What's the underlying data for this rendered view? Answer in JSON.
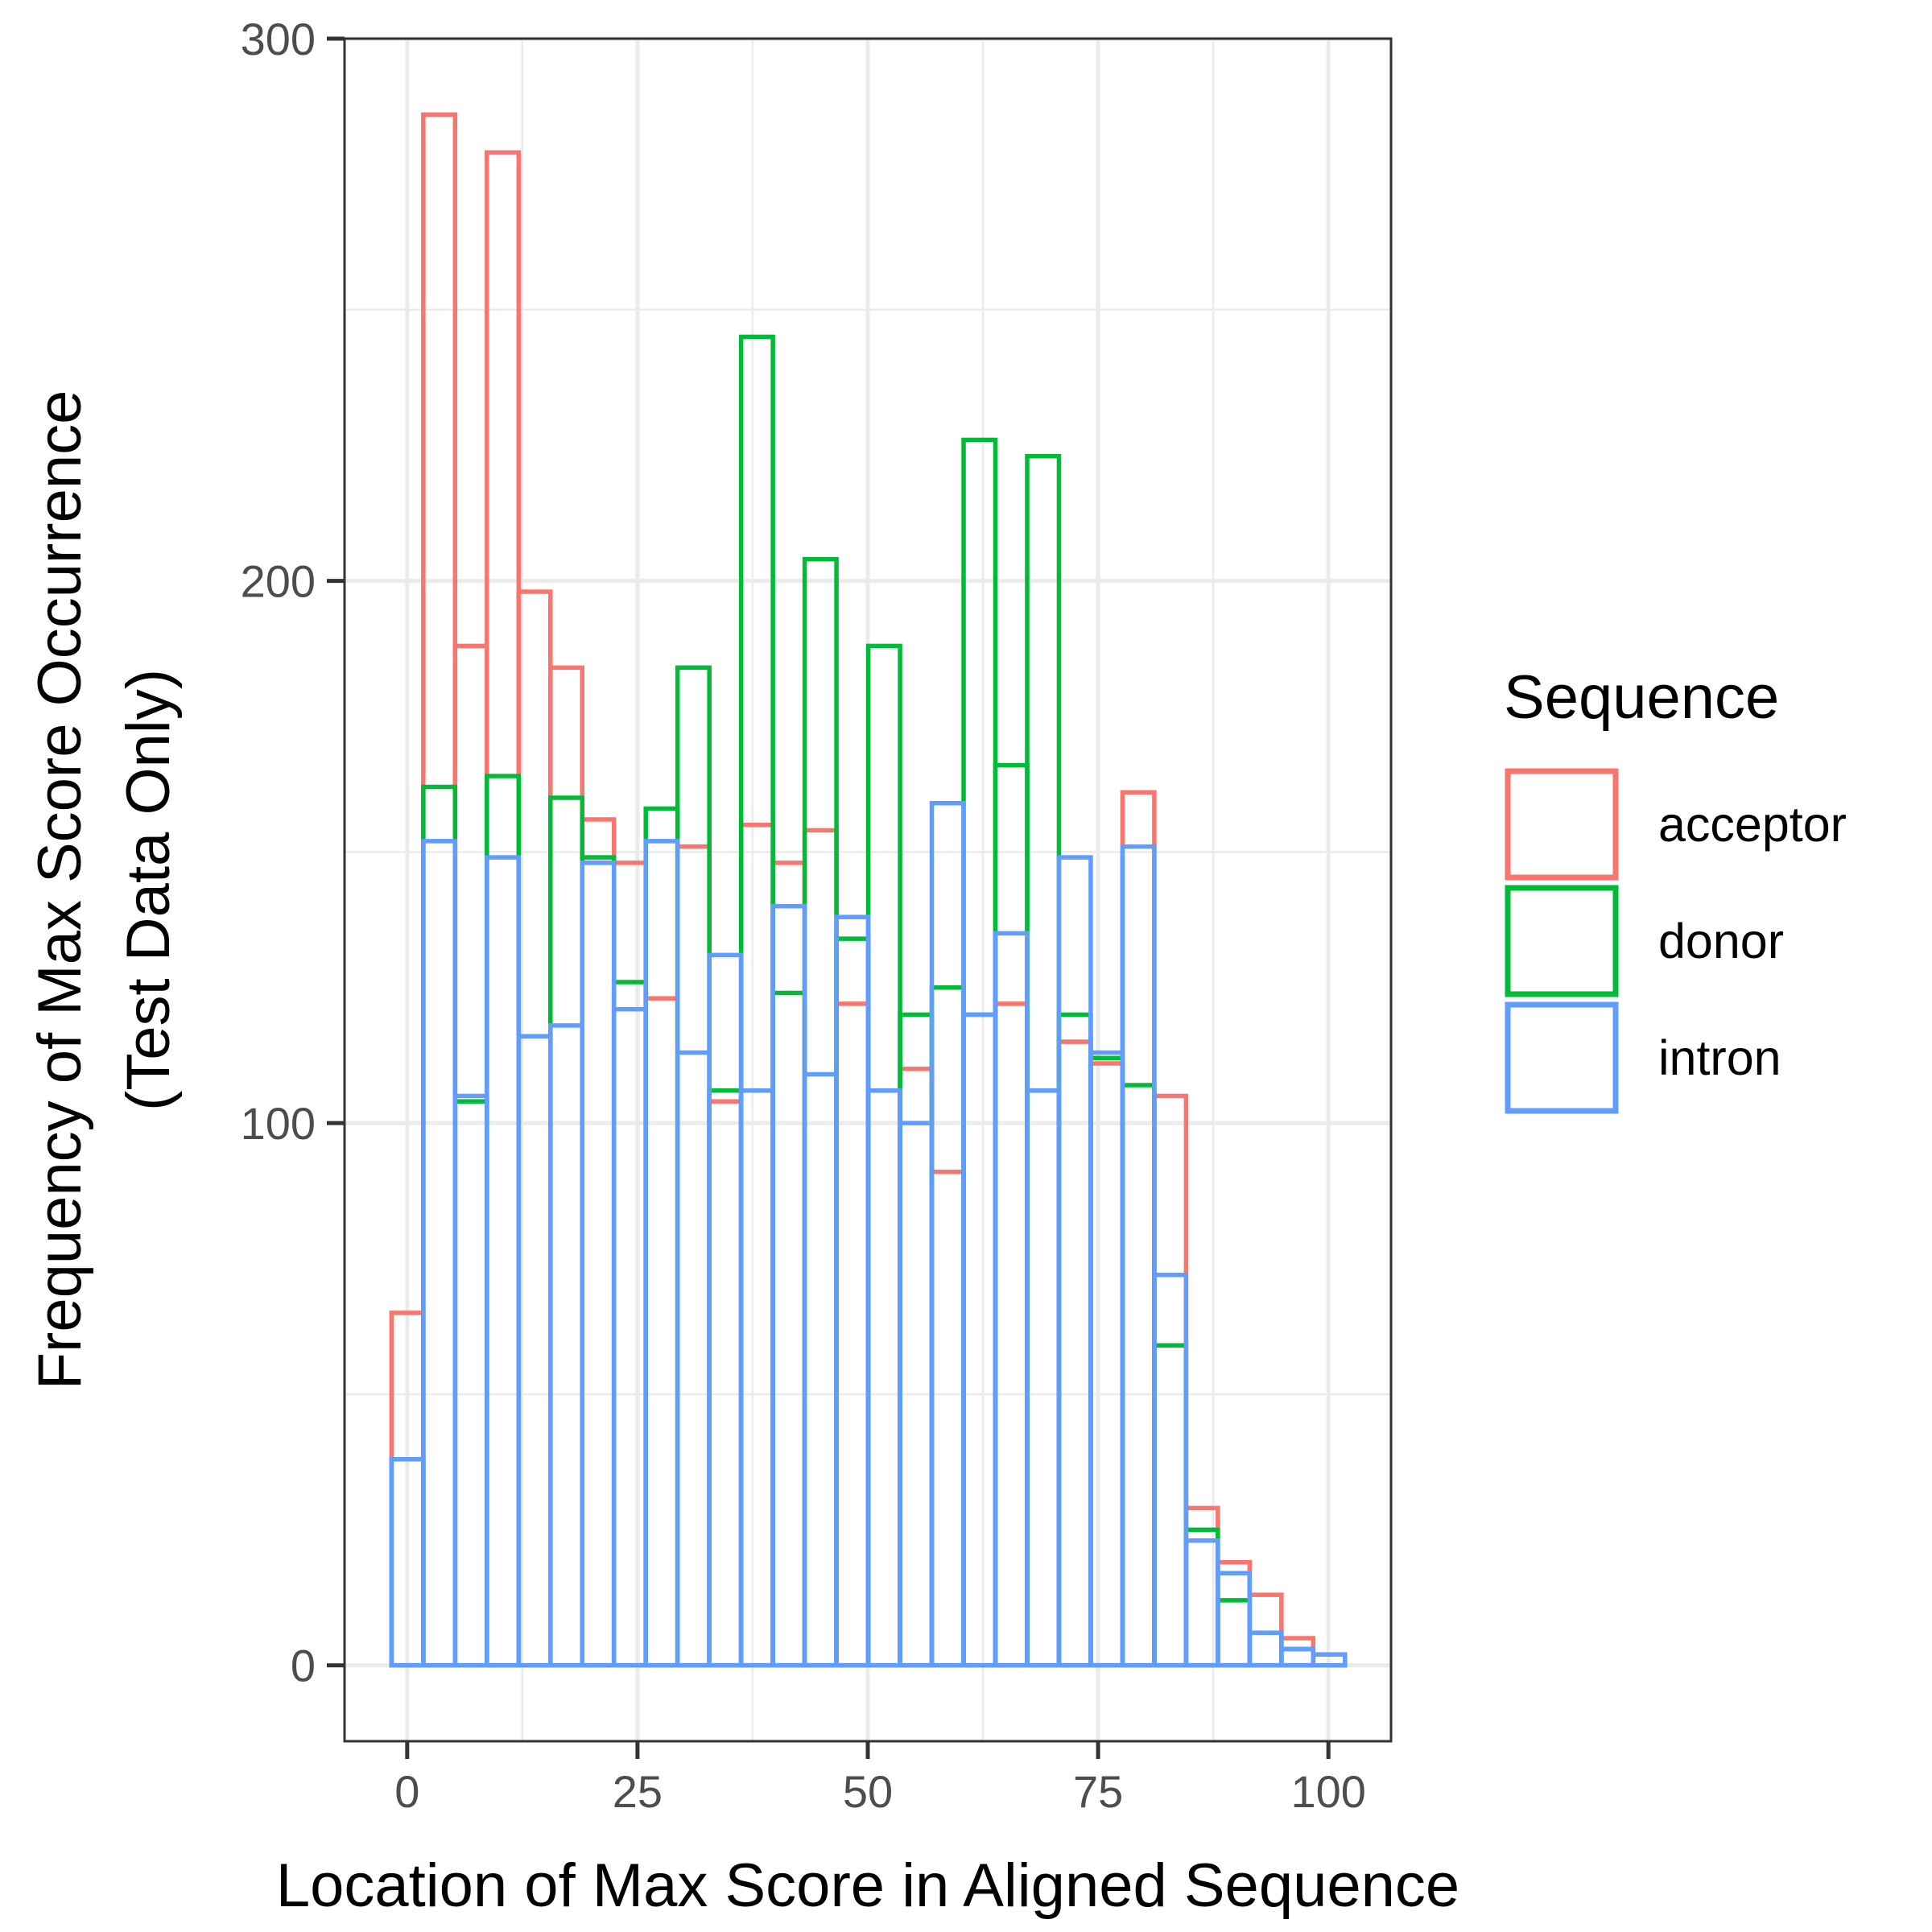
{
  "chart_data": {
    "type": "bar",
    "subtype": "overlaid-histogram-outline",
    "xlabel": "Location of Max Score in Aligned Sequence",
    "ylabel": [
      "Frequency of Max Score Occurrence",
      "(Test Data Only)"
    ],
    "xlim": [
      -6.8,
      106.8
    ],
    "ylim": [
      -14,
      300
    ],
    "x_ticks": [
      0,
      25,
      50,
      75,
      100
    ],
    "x_tick_labels": [
      "0",
      "25",
      "50",
      "75",
      "100"
    ],
    "y_ticks": [
      0,
      100,
      200,
      300
    ],
    "y_tick_labels": [
      "0",
      "100",
      "200",
      "300"
    ],
    "grid": true,
    "legend": {
      "title": "Sequence",
      "placement": "right"
    },
    "bin_start": -1.7,
    "bin_width": 3.45,
    "series": [
      {
        "name": "acceptor",
        "color": "#F8766D",
        "values": [
          65,
          286,
          188,
          279,
          198,
          184,
          156,
          148,
          123,
          151,
          104,
          155,
          148,
          154,
          122,
          106,
          110,
          91,
          120,
          122,
          106,
          115,
          111,
          161,
          105,
          29,
          19,
          13,
          5,
          2,
          0
        ]
      },
      {
        "name": "donor",
        "color": "#00BA38",
        "values": [
          38,
          162,
          104,
          164,
          116,
          160,
          149,
          126,
          158,
          184,
          106,
          245,
          124,
          204,
          134,
          188,
          120,
          125,
          226,
          166,
          223,
          120,
          112,
          107,
          59,
          25,
          12,
          6,
          3,
          0,
          0
        ]
      },
      {
        "name": "intron",
        "color": "#619CFF",
        "values": [
          38,
          152,
          105,
          149,
          116,
          118,
          148,
          121,
          152,
          113,
          131,
          106,
          140,
          109,
          138,
          106,
          100,
          159,
          120,
          135,
          106,
          149,
          113,
          151,
          72,
          23,
          17,
          6,
          3,
          2,
          0
        ]
      }
    ]
  }
}
